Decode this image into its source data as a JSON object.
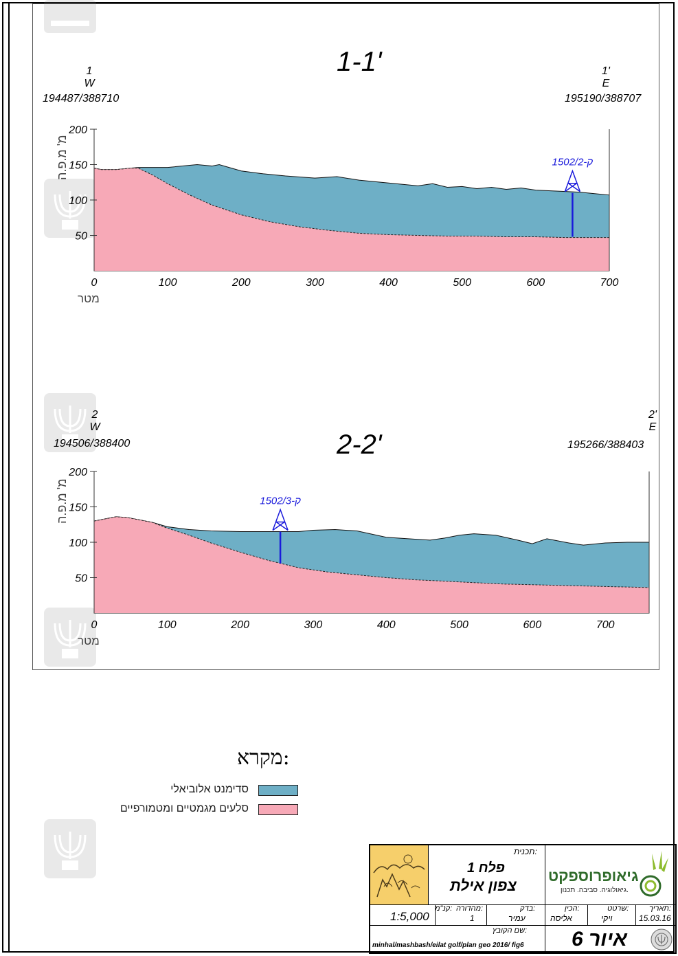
{
  "sections": [
    {
      "title": "1-1'",
      "west": {
        "num": "1",
        "dir": "W",
        "coord": "194487/388710"
      },
      "east": {
        "num": "1'",
        "dir": "E",
        "coord": "195190/388707"
      },
      "y_axis_label": "מ' מ.פ.ה",
      "x_axis_label": "מטר",
      "y_ticks": [
        "200",
        "150",
        "100",
        "50"
      ],
      "x_ticks": [
        "0",
        "100",
        "200",
        "300",
        "400",
        "500",
        "600",
        "700"
      ],
      "borehole": {
        "label": "1502/2-ק",
        "x": 650,
        "top": 110,
        "bottom": 48
      },
      "chart_data": {
        "type": "area",
        "xlabel": "מטר",
        "ylabel": "מ' מ.פ.ה",
        "xlim": [
          0,
          700
        ],
        "ylim": [
          0,
          200
        ],
        "series": [
          {
            "name": "סדימנט אלוביאלי",
            "x": [
              0,
              10,
              30,
              50,
              60,
              80,
              100,
              120,
              140,
              150,
              160,
              170,
              180,
              200,
              230,
              260,
              300,
              330,
              360,
              400,
              440,
              460,
              480,
              500,
              520,
              540,
              560,
              580,
              600,
              620,
              640,
              660,
              680,
              700
            ],
            "values": [
              145,
              143,
              143,
              145,
              146,
              146,
              146,
              148,
              150,
              149,
              148,
              150,
              147,
              141,
              137,
              134,
              131,
              133,
              128,
              124,
              120,
              123,
              118,
              119,
              116,
              118,
              115,
              117,
              114,
              113,
              112,
              111,
              109,
              107
            ]
          },
          {
            "name": "סלעים מגמטיים ומטמורפיים",
            "x": [
              0,
              10,
              30,
              50,
              60,
              80,
              100,
              130,
              160,
              200,
              240,
              280,
              320,
              360,
              400,
              440,
              480,
              520,
              560,
              600,
              640,
              680,
              700
            ],
            "values": [
              145,
              143,
              143,
              145,
              145,
              135,
              123,
              107,
              93,
              79,
              69,
              62,
              57,
              53,
              51,
              50,
              49,
              49,
              48,
              48,
              47,
              47,
              47
            ]
          }
        ]
      }
    },
    {
      "title": "2-2'",
      "west": {
        "num": "2",
        "dir": "W",
        "coord": "194506/388400"
      },
      "east": {
        "num": "2'",
        "dir": "E",
        "coord": "195266/388403"
      },
      "y_axis_label": "מ' מ.פ.ה",
      "x_axis_label": "מטר",
      "y_ticks": [
        "200",
        "150",
        "100",
        "50"
      ],
      "x_ticks": [
        "0",
        "100",
        "200",
        "300",
        "400",
        "500",
        "600",
        "700"
      ],
      "borehole": {
        "label": "1502/3-ק",
        "x": 255,
        "top": 115,
        "bottom": 70
      },
      "chart_data": {
        "type": "area",
        "xlabel": "מטר",
        "ylabel": "מ' מ.פ.ה",
        "xlim": [
          0,
          760
        ],
        "ylim": [
          0,
          200
        ],
        "series": [
          {
            "name": "סדימנט אלוביאלי",
            "x": [
              0,
              15,
              30,
              45,
              60,
              80,
              100,
              130,
              160,
              200,
              240,
              280,
              300,
              330,
              360,
              400,
              430,
              460,
              480,
              500,
              520,
              550,
              580,
              600,
              620,
              650,
              670,
              700,
              730,
              760
            ],
            "values": [
              130,
              133,
              136,
              135,
              132,
              128,
              122,
              118,
              116,
              115,
              115,
              115,
              117,
              118,
              116,
              107,
              105,
              103,
              106,
              110,
              112,
              110,
              103,
              98,
              105,
              99,
              96,
              99,
              100,
              100
            ]
          },
          {
            "name": "סלעים מגמטיים ומטמורפיים",
            "x": [
              0,
              15,
              30,
              45,
              60,
              80,
              100,
              130,
              160,
              200,
              240,
              280,
              320,
              360,
              400,
              440,
              480,
              520,
              560,
              600,
              640,
              680,
              720,
              760
            ],
            "values": [
              130,
              133,
              136,
              135,
              132,
              128,
              120,
              110,
              99,
              86,
              74,
              64,
              58,
              54,
              50,
              47,
              45,
              43,
              41,
              40,
              39,
              38,
              37,
              36
            ]
          }
        ]
      }
    }
  ],
  "legend": {
    "title": "מקרא:",
    "items": [
      {
        "label": "סדימנט אלוביאלי",
        "color": "#6eafc6"
      },
      {
        "label": "סלעים מגמטיים ומטמורפיים",
        "color": "#f7a9b7"
      }
    ]
  },
  "colors": {
    "alluvial": "#6eafc6",
    "rock": "#f7a9b7",
    "borehole": "#1a1adb"
  },
  "title_block": {
    "plan_label": "תכנית:",
    "plan_line1": "פלח 1",
    "plan_line2": "צפון אילת",
    "company_name": "גיאופרוספקט",
    "company_tagline": "גיאולוגיה. סביבה. תכנון.",
    "scale_label": "קנ\"מ:",
    "scale_value": "1:5,000",
    "edition_label": "מהדורה:",
    "edition_value": "1",
    "checked_label": "בדק:",
    "checked_value": "עמיר",
    "prepared_label": "הכין:",
    "prepared_value": "אליסה",
    "drawn_label": "שרטט:",
    "drawn_value": "ויקי",
    "date_label": "תאריך:",
    "date_value": "15.03.16",
    "file_label": "שם הקובץ:",
    "file_value": "minhal/mashbash/eilat golf/plan geo 2016/ fig6",
    "figure_label": "איור 6"
  }
}
